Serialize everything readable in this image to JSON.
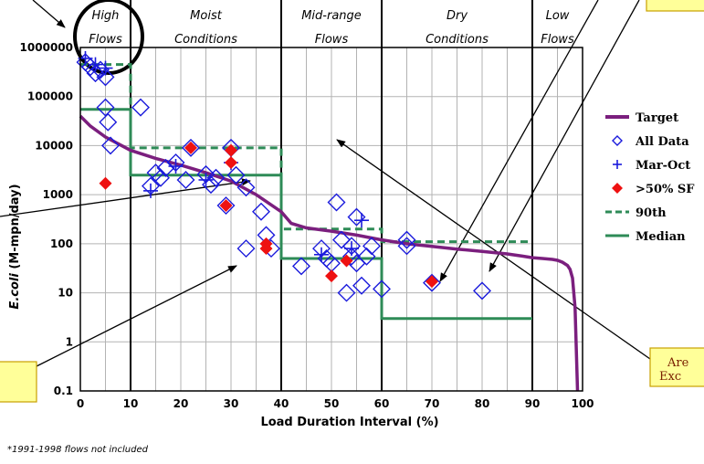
{
  "chart_data": {
    "type": "scatter",
    "title": "",
    "xlabel": "Load Duration Interval (%)",
    "ylabel": "E.coli (M-mpn/day)",
    "ylabel_italic_part": "E.coli",
    "ylabel_rest": " (M-mpn/day)",
    "xlim": [
      0,
      100
    ],
    "ylim": [
      0.1,
      1000000
    ],
    "yscale": "log",
    "grid": true,
    "legend_position": "right",
    "x_ticks": [
      "0",
      "10",
      "20",
      "30",
      "40",
      "50",
      "60",
      "70",
      "80",
      "90",
      "100"
    ],
    "y_ticks": [
      "0.1",
      "1",
      "10",
      "100",
      "1000",
      "10000",
      "100000",
      "1000000"
    ],
    "zones": [
      {
        "label_line1": "High",
        "label_line2": "Flows",
        "from": 0,
        "to": 10
      },
      {
        "label_line1": "Moist",
        "label_line2": "Conditions",
        "from": 10,
        "to": 40
      },
      {
        "label_line1": "Mid-range",
        "label_line2": "Flows",
        "from": 40,
        "to": 60
      },
      {
        "label_line1": "Dry",
        "label_line2": "Conditions",
        "from": 60,
        "to": 90
      },
      {
        "label_line1": "Low",
        "label_line2": "Flows",
        "from": 90,
        "to": 100
      }
    ],
    "series": [
      {
        "name": "Target",
        "color": "#7b1f7e",
        "x": [
          0,
          2,
          5,
          10,
          15,
          20,
          25,
          30,
          35,
          40,
          42,
          45,
          50,
          55,
          60,
          65,
          70,
          75,
          80,
          85,
          88,
          90,
          92,
          94,
          95,
          96,
          97,
          97.5,
          98,
          98.5,
          99
        ],
        "y": [
          40000,
          25000,
          15000,
          8000,
          5500,
          4000,
          2800,
          1900,
          1000,
          450,
          260,
          210,
          180,
          150,
          120,
          100,
          88,
          78,
          70,
          62,
          56,
          52,
          50,
          48,
          46,
          42,
          36,
          30,
          20,
          5,
          0.1
        ]
      },
      {
        "name": "All Data",
        "color": "#1a1adc",
        "x": [
          1,
          2,
          3,
          4,
          5,
          5,
          5.5,
          6,
          12,
          14,
          15,
          16,
          17,
          19,
          21,
          22,
          25,
          26,
          27,
          29,
          30,
          31,
          33,
          33,
          36,
          37,
          38,
          44,
          48,
          49,
          50,
          51,
          52,
          53,
          54,
          54,
          55,
          55,
          56,
          57,
          58,
          60,
          65,
          65,
          70,
          80
        ],
        "y": [
          500000,
          400000,
          300000,
          350000,
          250000,
          60000,
          30000,
          10000,
          60000,
          1500,
          2800,
          2200,
          3500,
          4500,
          2000,
          9000,
          2600,
          1600,
          2200,
          600,
          9000,
          2500,
          1400,
          80,
          450,
          150,
          80,
          35,
          80,
          50,
          40,
          700,
          120,
          10,
          90,
          55,
          40,
          350,
          14,
          55,
          90,
          12,
          120,
          90,
          16,
          11
        ]
      },
      {
        "name": "Mar-Oct",
        "color": "#1a1adc",
        "x": [
          1,
          3,
          5,
          14,
          19,
          25,
          30,
          48,
          54,
          56
        ],
        "y": [
          600000,
          450000,
          380000,
          1200,
          3800,
          2000,
          4500,
          60,
          80,
          300
        ]
      },
      {
        "name": ">50% SF",
        "color": "#ee1111",
        "x": [
          5,
          22,
          30,
          30,
          29,
          37,
          37,
          50,
          53,
          70
        ],
        "y": [
          1700,
          9000,
          8000,
          4500,
          600,
          100,
          80,
          22,
          45,
          17
        ]
      },
      {
        "name": "90th",
        "color": "#2e8b57",
        "x": [
          0,
          10,
          10,
          40,
          40,
          60,
          60,
          90
        ],
        "y": [
          450000,
          450000,
          9000,
          9000,
          200,
          200,
          110,
          110
        ]
      },
      {
        "name": "Median",
        "color": "#2e8b57",
        "x": [
          0,
          10,
          10,
          40,
          40,
          60,
          60,
          90
        ],
        "y": [
          55000,
          55000,
          2500,
          2500,
          50,
          50,
          3,
          3
        ]
      }
    ],
    "callouts": [
      {
        "text_line1": "Are",
        "text_line2": "Exc"
      }
    ],
    "footnote": "*1991-1998 flows not included"
  },
  "colors": {
    "callout_fill": "#ffff99",
    "callout_border": "#c8a000"
  }
}
